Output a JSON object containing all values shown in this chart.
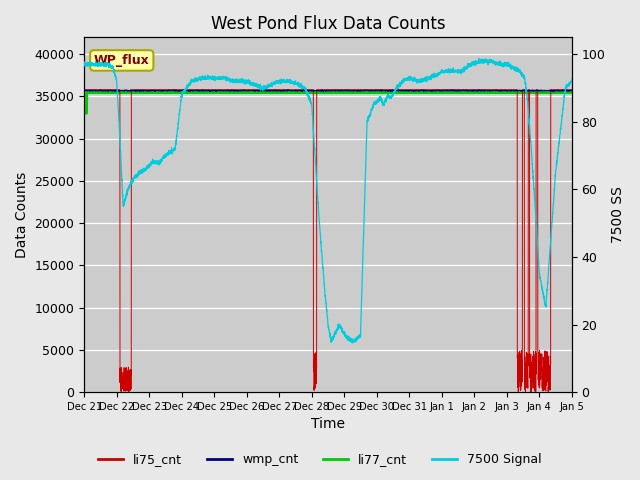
{
  "title": "West Pond Flux Data Counts",
  "xlabel": "Time",
  "ylabel": "Data Counts",
  "ylabel_right": "7500 SS",
  "annotation_text": "WP_flux",
  "background_color": "#e8e8e8",
  "plot_bg_color": "#cccccc",
  "ylim_left": [
    0,
    42000
  ],
  "ylim_right": [
    0,
    105
  ],
  "yticks_left": [
    0,
    5000,
    10000,
    15000,
    20000,
    25000,
    30000,
    35000,
    40000
  ],
  "yticks_right": [
    0,
    20,
    40,
    60,
    80,
    100
  ],
  "colors": {
    "li75_cnt": "#cc0000",
    "wmp_cnt": "#000080",
    "li77_cnt": "#00cc00",
    "signal_7500": "#00ccdd"
  },
  "legend_labels": [
    "li75_cnt",
    "wmp_cnt",
    "li77_cnt",
    "7500 Signal"
  ],
  "tick_labels": [
    "Dec 21",
    "Dec 22",
    "Dec 23",
    "Dec 24",
    "Dec 25",
    "Dec 26",
    "Dec 27",
    "Dec 28",
    "Dec 29",
    "Dec 30",
    "Dec 31",
    "Jan 1",
    "Jan 2",
    "Jan 3",
    "Jan 4",
    "Jan 5"
  ]
}
